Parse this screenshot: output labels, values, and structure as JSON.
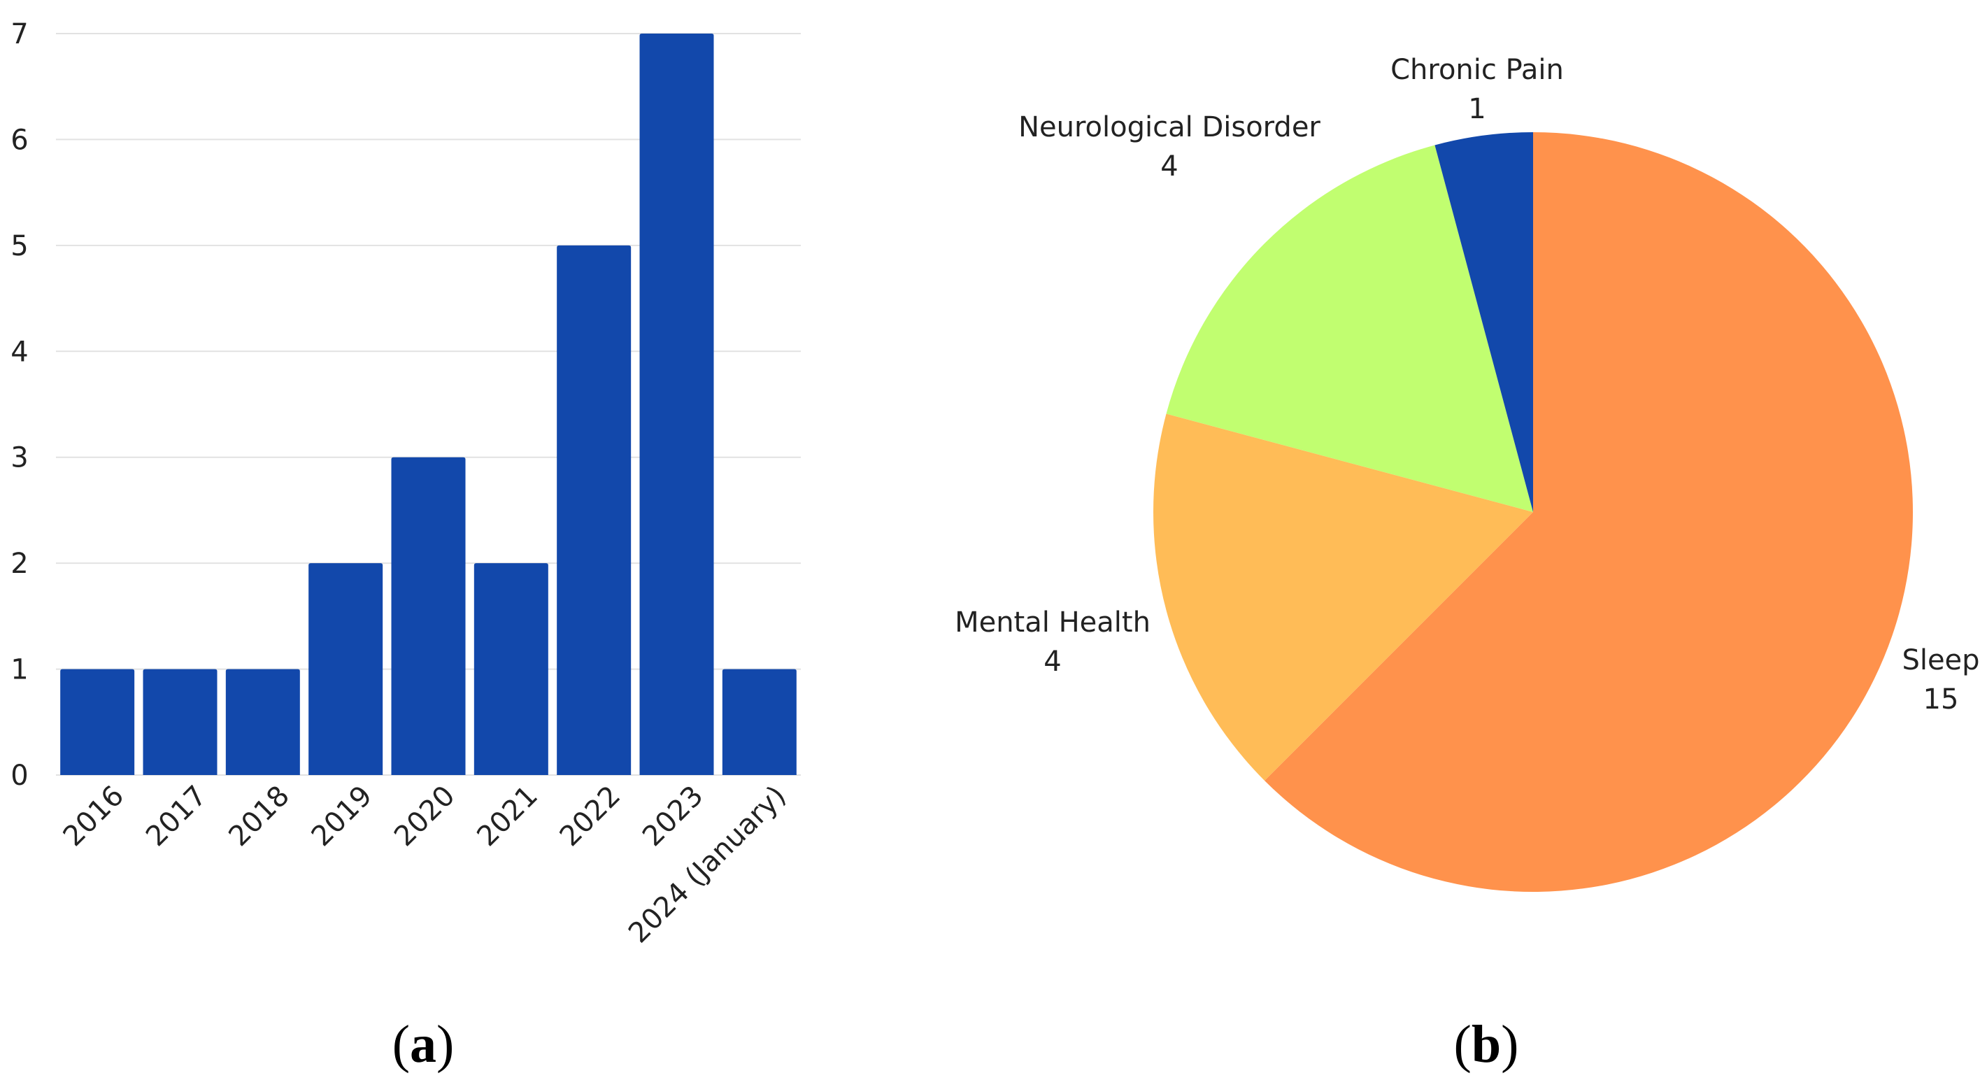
{
  "chart_data": [
    {
      "type": "bar",
      "panel_label": "a",
      "categories": [
        "2016",
        "2017",
        "2018",
        "2019",
        "2020",
        "2021",
        "2022",
        "2023",
        "2024 (January)"
      ],
      "values": [
        1,
        1,
        1,
        2,
        3,
        2,
        5,
        7,
        1
      ],
      "title": "",
      "xlabel": "",
      "ylabel": "",
      "ylim": [
        0,
        7
      ],
      "yticks": [
        0,
        1,
        2,
        3,
        4,
        5,
        6,
        7
      ],
      "grid": true,
      "bar_color": "#1248AB",
      "grid_color": "#E2E2E2"
    },
    {
      "type": "pie",
      "panel_label": "b",
      "slices": [
        {
          "label": "Sleep",
          "value": 15,
          "color": "#FF924C"
        },
        {
          "label": "Mental Health",
          "value": 4,
          "color": "#FFBC57"
        },
        {
          "label": "Neurological Disorder",
          "value": 4,
          "color": "#C1FE70"
        },
        {
          "label": "Chronic Pain",
          "value": 1,
          "color": "#1248AB"
        }
      ],
      "start": "12 o'clock",
      "direction": "clockwise"
    }
  ]
}
